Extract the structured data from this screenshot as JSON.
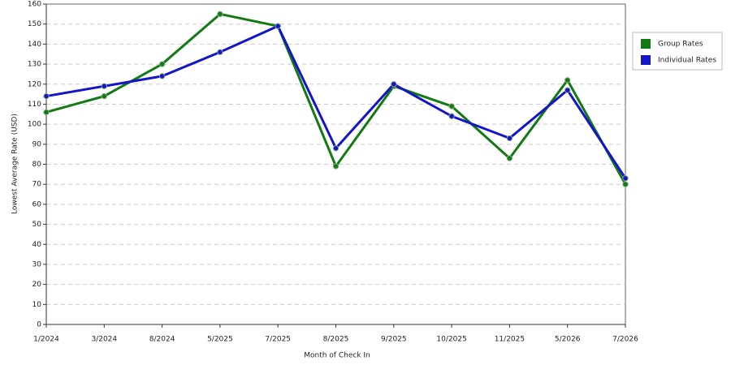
{
  "chart_data": {
    "type": "line",
    "x_label": "Month of Check In",
    "y_label": "Lowest Average Rate (USD)",
    "categories": [
      "1/2024",
      "3/2024",
      "8/2024",
      "5/2025",
      "7/2025",
      "8/2025",
      "9/2025",
      "10/2025",
      "11/2025",
      "5/2026",
      "7/2026"
    ],
    "series": [
      {
        "name": "Group Rates",
        "color": "#137a13",
        "values": [
          106,
          114,
          130,
          155,
          149,
          79,
          119,
          109,
          83,
          122,
          70
        ]
      },
      {
        "name": "Individual Rates",
        "color": "#1414c8",
        "values": [
          114,
          119,
          124,
          136,
          149,
          88,
          120,
          104,
          93,
          117,
          73
        ]
      }
    ],
    "ylim": [
      0,
      160
    ],
    "yticks": [
      0,
      10,
      20,
      30,
      40,
      50,
      60,
      70,
      80,
      90,
      100,
      110,
      120,
      130,
      140,
      150,
      160
    ],
    "grid": true,
    "legend": "right"
  }
}
